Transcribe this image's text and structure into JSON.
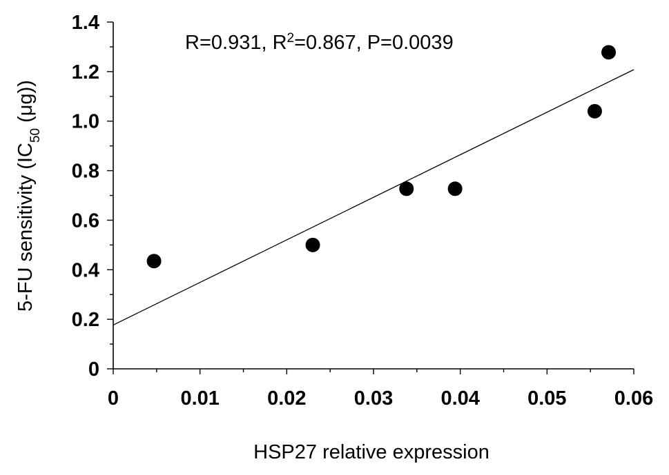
{
  "chart_data": {
    "type": "scatter",
    "xlabel": "HSP27 relative expression",
    "ylabel": {
      "prefix": "5-FU sensitivity (IC",
      "subscript": "50",
      "suffix": " (μg))"
    },
    "annotation": {
      "part1": "R=0.931, R",
      "superscript": "2",
      "part2": "=0.867, P=0.0039"
    },
    "xlim": [
      0,
      0.06
    ],
    "ylim": [
      0,
      1.4
    ],
    "x_ticks": [
      0,
      0.01,
      0.02,
      0.03,
      0.04,
      0.05,
      0.06
    ],
    "x_tick_labels": [
      "0",
      "0.01",
      "0.02",
      "0.03",
      "0.04",
      "0.05",
      "0.06"
    ],
    "y_ticks": [
      0,
      0.2,
      0.4,
      0.6,
      0.8,
      1.0,
      1.2,
      1.4
    ],
    "y_tick_labels": [
      "0",
      "0.2",
      "0.4",
      "0.6",
      "0.8",
      "1.0",
      "1.2",
      "1.4"
    ],
    "points": [
      {
        "x": 0.0047,
        "y": 0.435
      },
      {
        "x": 0.023,
        "y": 0.5
      },
      {
        "x": 0.0338,
        "y": 0.727
      },
      {
        "x": 0.0394,
        "y": 0.727
      },
      {
        "x": 0.0555,
        "y": 1.04
      },
      {
        "x": 0.0571,
        "y": 1.278
      }
    ],
    "fit_line": {
      "x": [
        0,
        0.06
      ],
      "y": [
        0.177,
        1.208
      ]
    },
    "grid": false,
    "legend": "none"
  }
}
